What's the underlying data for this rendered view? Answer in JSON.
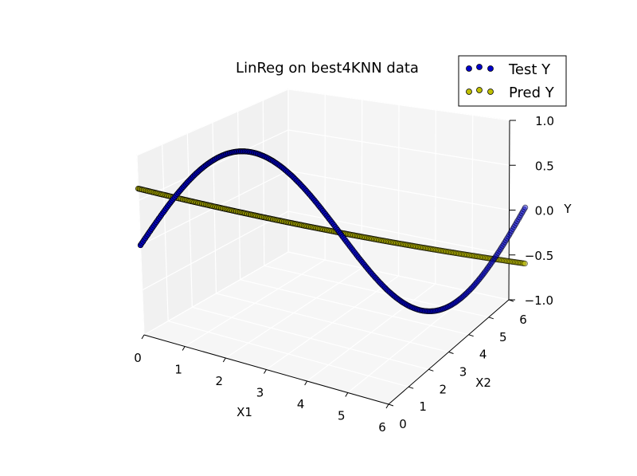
{
  "chart_data": {
    "type": "scatter",
    "projection": "3d",
    "title": "LinReg on best4KNN data",
    "xlabel": "X1",
    "ylabel": "X2",
    "zlabel": "Y",
    "xlim": [
      0,
      6
    ],
    "ylim": [
      0,
      6
    ],
    "zlim": [
      -1,
      1
    ],
    "x_ticks": [
      "0",
      "1",
      "2",
      "3",
      "4",
      "5",
      "6"
    ],
    "y_ticks": [
      "0",
      "1",
      "2",
      "3",
      "4",
      "5",
      "6"
    ],
    "z_ticks": [
      "−1.0",
      "−0.5",
      "0.0",
      "0.5",
      "1.0"
    ],
    "grid": true,
    "legend_position": "top-right",
    "series": [
      {
        "name": "Test Y",
        "color": "#0000cc",
        "relation": "Y = sin(X1), X1 = X2",
        "x_range": [
          0,
          6.28
        ],
        "y_range": [
          0,
          6.28
        ]
      },
      {
        "name": "Pred Y",
        "color": "#bfbf00",
        "relation": "Y ≈ 0.63 − 0.20·X1, X1 = X2",
        "x_range": [
          0,
          6.28
        ],
        "y_range": [
          0,
          6.28
        ]
      }
    ]
  }
}
